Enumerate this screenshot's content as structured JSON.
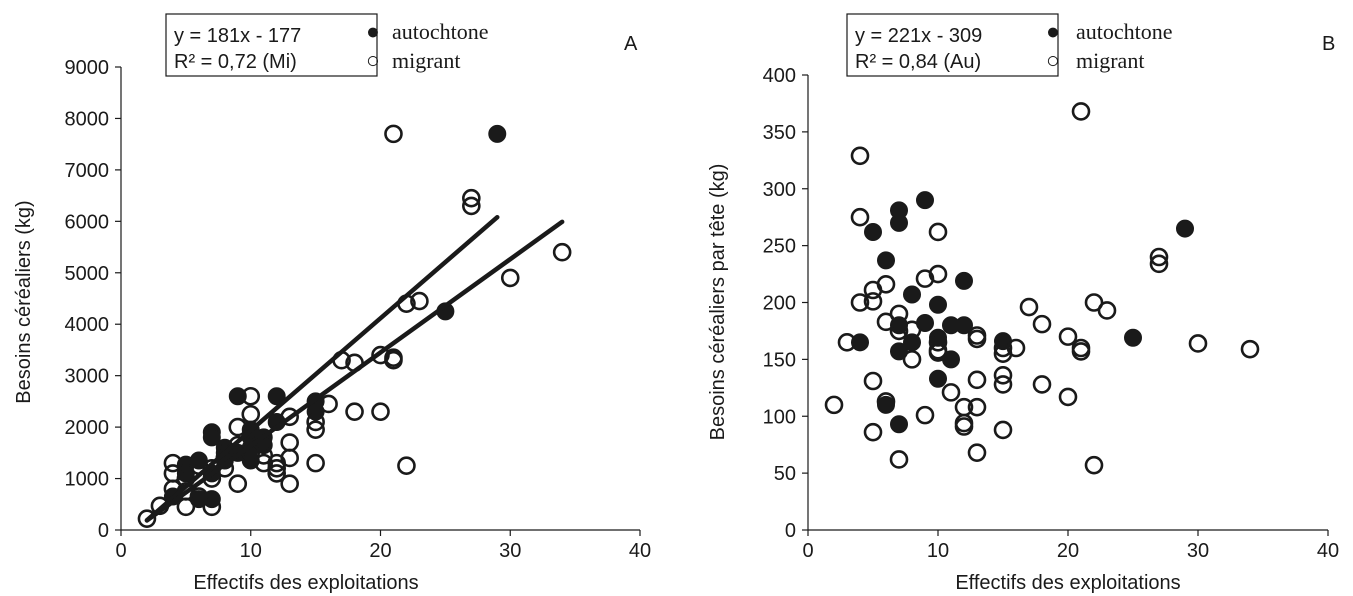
{
  "chart_data": [
    {
      "type": "scatter",
      "panel_label": "A",
      "xlabel": "Effectifs des exploitations",
      "ylabel": "Besoins céréaliers (kg)",
      "xlim": [
        0,
        40
      ],
      "ylim": [
        0,
        9000
      ],
      "xticks": [
        0,
        10,
        20,
        30,
        40
      ],
      "yticks": [
        0,
        1000,
        2000,
        3000,
        4000,
        5000,
        6000,
        7000,
        8000,
        9000
      ],
      "legend": {
        "equation": "y = 181x - 177",
        "r2": "R² = 0,72 (Mi)",
        "entries": [
          {
            "marker": "●",
            "label": "autochtone"
          },
          {
            "marker": "○",
            "label": "migrant"
          }
        ]
      },
      "fit_lines": [
        {
          "x": [
            2,
            29
          ],
          "y": [
            190,
            6080
          ]
        },
        {
          "x": [
            2,
            34
          ],
          "y": [
            185,
            5990
          ]
        }
      ],
      "series": [
        {
          "name": "autochtone",
          "filled": true,
          "points": [
            [
              4,
              650
            ],
            [
              5,
              1270
            ],
            [
              5,
              1100
            ],
            [
              6,
              1350
            ],
            [
              6,
              600
            ],
            [
              7,
              1100
            ],
            [
              7,
              600
            ],
            [
              7,
              1900
            ],
            [
              7,
              1800
            ],
            [
              8,
              1600
            ],
            [
              8,
              1500
            ],
            [
              8,
              1350
            ],
            [
              9,
              2600
            ],
            [
              9,
              1500
            ],
            [
              10,
              1800
            ],
            [
              10,
              1950
            ],
            [
              10,
              1600
            ],
            [
              10,
              1350
            ],
            [
              11,
              1800
            ],
            [
              11,
              1650
            ],
            [
              12,
              2600
            ],
            [
              12,
              2100
            ],
            [
              15,
              2500
            ],
            [
              15,
              2300
            ],
            [
              25,
              4250
            ],
            [
              29,
              7700
            ]
          ]
        },
        {
          "name": "migrant",
          "filled": false,
          "points": [
            [
              2,
              220
            ],
            [
              3,
              470
            ],
            [
              4,
              1300
            ],
            [
              4,
              1100
            ],
            [
              4,
              800
            ],
            [
              5,
              450
            ],
            [
              5,
              750
            ],
            [
              5,
              1000
            ],
            [
              6,
              650
            ],
            [
              6,
              1250
            ],
            [
              7,
              450
            ],
            [
              7,
              1000
            ],
            [
              7,
              1200
            ],
            [
              8,
              1400
            ],
            [
              8,
              1200
            ],
            [
              9,
              900
            ],
            [
              9,
              2000
            ],
            [
              9,
              1650
            ],
            [
              10,
              2600
            ],
            [
              10,
              2250
            ],
            [
              10,
              1500
            ],
            [
              11,
              1450
            ],
            [
              11,
              1300
            ],
            [
              12,
              1300
            ],
            [
              12,
              1100
            ],
            [
              12,
              1200
            ],
            [
              13,
              2200
            ],
            [
              13,
              1700
            ],
            [
              13,
              1400
            ],
            [
              13,
              900
            ],
            [
              15,
              2100
            ],
            [
              15,
              1950
            ],
            [
              15,
              1300
            ],
            [
              16,
              2450
            ],
            [
              17,
              3300
            ],
            [
              18,
              3250
            ],
            [
              18,
              2300
            ],
            [
              20,
              3400
            ],
            [
              20,
              2300
            ],
            [
              21,
              3350
            ],
            [
              21,
              3300
            ],
            [
              21,
              7700
            ],
            [
              22,
              4400
            ],
            [
              22,
              1250
            ],
            [
              23,
              4450
            ],
            [
              27,
              6450
            ],
            [
              27,
              6300
            ],
            [
              30,
              4900
            ],
            [
              34,
              5400
            ]
          ]
        }
      ]
    },
    {
      "type": "scatter",
      "panel_label": "B",
      "xlabel": "Effectifs des exploitations",
      "ylabel": "Besoins céréaliers par tête (kg)",
      "xlim": [
        0,
        40
      ],
      "ylim": [
        0,
        400
      ],
      "xticks": [
        0,
        10,
        20,
        30,
        40
      ],
      "yticks": [
        0,
        50,
        100,
        150,
        200,
        250,
        300,
        350,
        400
      ],
      "legend": {
        "equation": "y = 221x - 309",
        "r2": "R² = 0,84 (Au)",
        "entries": [
          {
            "marker": "●",
            "label": "autochtone"
          },
          {
            "marker": "○",
            "label": "migrant"
          }
        ]
      },
      "series": [
        {
          "name": "autochtone",
          "filled": true,
          "points": [
            [
              4,
              165
            ],
            [
              5,
              262
            ],
            [
              6,
              237
            ],
            [
              6,
              110
            ],
            [
              7,
              281
            ],
            [
              7,
              270
            ],
            [
              7,
              157
            ],
            [
              7,
              180
            ],
            [
              7,
              93
            ],
            [
              8,
              207
            ],
            [
              8,
              165
            ],
            [
              9,
              290
            ],
            [
              9,
              182
            ],
            [
              10,
              198
            ],
            [
              10,
              169
            ],
            [
              10,
              133
            ],
            [
              11,
              180
            ],
            [
              11,
              150
            ],
            [
              12,
              219
            ],
            [
              12,
              180
            ],
            [
              15,
              166
            ],
            [
              25,
              169
            ],
            [
              29,
              265
            ]
          ]
        },
        {
          "name": "migrant",
          "filled": false,
          "points": [
            [
              2,
              110
            ],
            [
              3,
              165
            ],
            [
              4,
              329
            ],
            [
              4,
              275
            ],
            [
              4,
              200
            ],
            [
              5,
              201
            ],
            [
              5,
              211
            ],
            [
              5,
              131
            ],
            [
              5,
              86
            ],
            [
              6,
              216
            ],
            [
              6,
              183
            ],
            [
              6,
              113
            ],
            [
              7,
              190
            ],
            [
              7,
              175
            ],
            [
              7,
              62
            ],
            [
              8,
              150
            ],
            [
              8,
              176
            ],
            [
              9,
              221
            ],
            [
              9,
              101
            ],
            [
              10,
              262
            ],
            [
              10,
              225
            ],
            [
              10,
              165
            ],
            [
              10,
              158
            ],
            [
              10,
              156
            ],
            [
              11,
              121
            ],
            [
              12,
              108
            ],
            [
              12,
              94
            ],
            [
              12,
              91
            ],
            [
              13,
              171
            ],
            [
              13,
              168
            ],
            [
              13,
              132
            ],
            [
              13,
              108
            ],
            [
              13,
              68
            ],
            [
              15,
              160
            ],
            [
              15,
              155
            ],
            [
              15,
              136
            ],
            [
              15,
              128
            ],
            [
              15,
              88
            ],
            [
              16,
              160
            ],
            [
              17,
              196
            ],
            [
              18,
              181
            ],
            [
              18,
              128
            ],
            [
              20,
              170
            ],
            [
              20,
              117
            ],
            [
              21,
              368
            ],
            [
              21,
              160
            ],
            [
              21,
              157
            ],
            [
              22,
              200
            ],
            [
              22,
              57
            ],
            [
              23,
              193
            ],
            [
              27,
              240
            ],
            [
              27,
              234
            ],
            [
              30,
              164
            ],
            [
              34,
              159
            ]
          ]
        }
      ]
    }
  ]
}
